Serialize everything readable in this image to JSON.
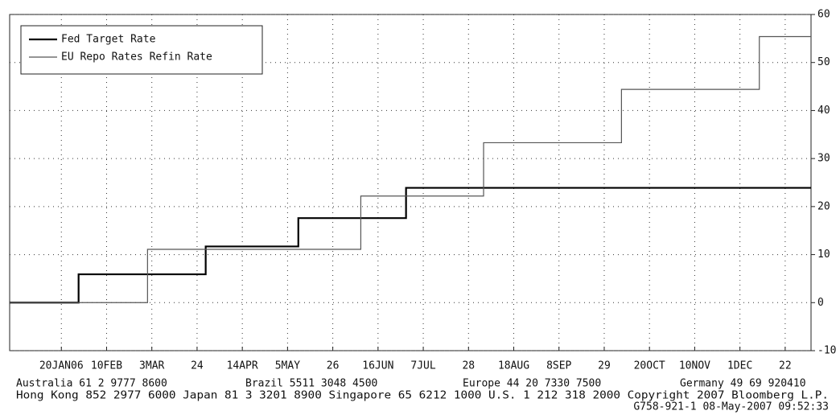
{
  "chart_data": {
    "type": "line",
    "step": true,
    "xlim": [
      "2005-12-27",
      "2007-01-03"
    ],
    "xticks": [
      {
        "value": "2006-01-20",
        "label": "20JAN06"
      },
      {
        "value": "2006-02-10",
        "label": "10FEB"
      },
      {
        "value": "2006-03-03",
        "label": "3MAR"
      },
      {
        "value": "2006-03-24",
        "label": "24"
      },
      {
        "value": "2006-04-14",
        "label": "14APR"
      },
      {
        "value": "2006-05-05",
        "label": "5MAY"
      },
      {
        "value": "2006-05-26",
        "label": "26"
      },
      {
        "value": "2006-06-16",
        "label": "16JUN"
      },
      {
        "value": "2006-07-07",
        "label": "7JUL"
      },
      {
        "value": "2006-07-28",
        "label": "28"
      },
      {
        "value": "2006-08-18",
        "label": "18AUG"
      },
      {
        "value": "2006-09-08",
        "label": "8SEP"
      },
      {
        "value": "2006-09-29",
        "label": "29"
      },
      {
        "value": "2006-10-20",
        "label": "20OCT"
      },
      {
        "value": "2006-11-10",
        "label": "10NOV"
      },
      {
        "value": "2006-12-01",
        "label": "1DEC"
      },
      {
        "value": "2006-12-22",
        "label": "22"
      }
    ],
    "ylim": [
      -10,
      60
    ],
    "yticks": [
      -10,
      0,
      10,
      20,
      30,
      40,
      50,
      60
    ],
    "grid": true,
    "legend": "top-left",
    "series": [
      {
        "name": "Fed Target Rate",
        "color": "#000000",
        "x": [
          "2005-12-27",
          "2006-01-28",
          "2006-03-28",
          "2006-05-10",
          "2006-06-29",
          "2007-01-03"
        ],
        "values": [
          0,
          5.9,
          11.7,
          17.6,
          23.9,
          23.9
        ]
      },
      {
        "name": "EU Repo Rates Refin Rate",
        "color": "#555555",
        "x": [
          "2005-12-27",
          "2006-03-01",
          "2006-06-08",
          "2006-08-04",
          "2006-10-07",
          "2006-12-10",
          "2007-01-03"
        ],
        "values": [
          0,
          11.1,
          22.2,
          33.3,
          44.4,
          55.4,
          55.4
        ]
      }
    ]
  },
  "footer": {
    "line1": [
      "Australia 61 2 9777 8600",
      "Brazil 5511 3048 4500",
      "Europe 44 20 7330 7500",
      "Germany 49 69 920410"
    ],
    "line2": "Hong Kong 852 2977 6000 Japan 81 3 3201 8900 Singapore 65 6212 1000 U.S. 1 212 318 2000 Copyright 2007 Bloomberg L.P.",
    "line3": "G758-921-1 08-May-2007 09:52:33"
  }
}
